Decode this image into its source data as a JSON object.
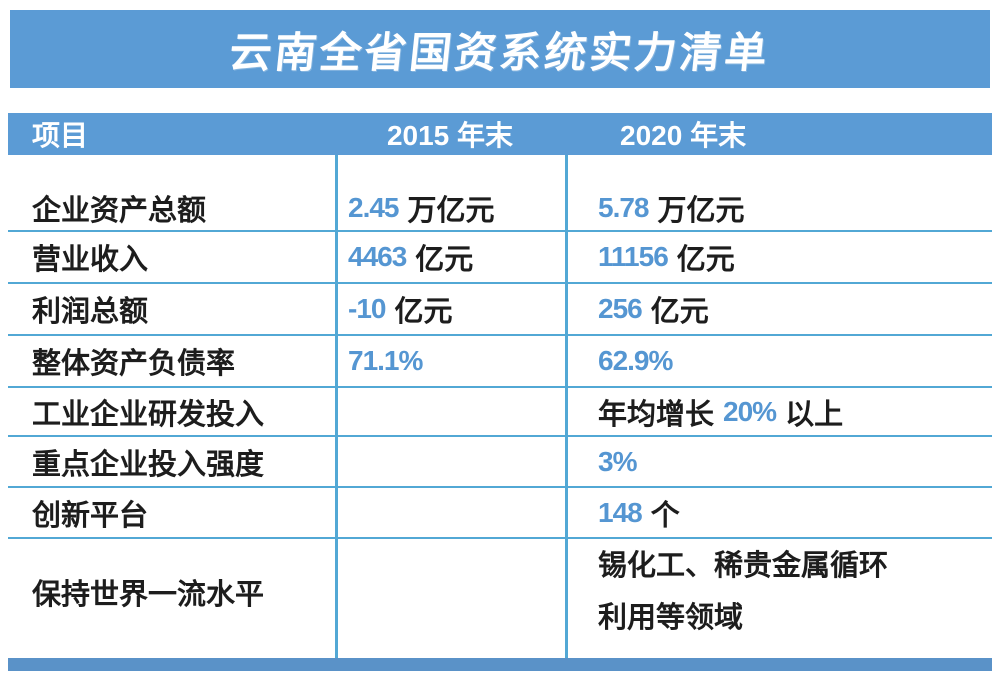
{
  "banner": {
    "title": "云南全省国资系统实力清单"
  },
  "table": {
    "header": {
      "item": "项目",
      "y2015": "2015 年末",
      "y2020": "2020 年末"
    },
    "rows": [
      {
        "label": "企业资产总额",
        "v2015": {
          "num": "2.45",
          "unit": "万亿元"
        },
        "v2020": {
          "num": "5.78",
          "unit": "万亿元"
        }
      },
      {
        "label": "营业收入",
        "v2015": {
          "num": "4463",
          "unit": "亿元"
        },
        "v2020": {
          "num": "11156",
          "unit": "亿元"
        }
      },
      {
        "label": "利润总额",
        "v2015": {
          "num": "-10",
          "unit": "亿元"
        },
        "v2020": {
          "num": "256",
          "unit": "亿元"
        }
      },
      {
        "label": "整体资产负债率",
        "v2015": {
          "num": "71.1%"
        },
        "v2020": {
          "num": "62.9%"
        }
      },
      {
        "label": "工业企业研发投入",
        "v2020": {
          "pre": "年均增长",
          "num": "20%",
          "post": "以上"
        }
      },
      {
        "label": "重点企业投入强度",
        "v2020": {
          "num": "3%"
        }
      },
      {
        "label": "创新平台",
        "v2020": {
          "num": "148",
          "unit": "个"
        }
      },
      {
        "label": "保持世界一流水平",
        "v2020_lines": [
          "锡化工、稀贵金属循环",
          "利用等领域"
        ]
      }
    ]
  },
  "colors": {
    "banner_blue": "#5b9bd5",
    "grid_line_blue": "#52a8d5",
    "number_blue": "#5596d2",
    "text_dark": "#1d1d1d",
    "bottom_bar_blue": "#5a92c8",
    "header_text": "#ffffff"
  },
  "chart_data": {
    "type": "table",
    "title": "云南全省国资系统实力清单",
    "columns": [
      "项目",
      "2015 年末",
      "2020 年末"
    ],
    "rows": [
      [
        "企业资产总额",
        "2.45 万亿元",
        "5.78 万亿元"
      ],
      [
        "营业收入",
        "4463 亿元",
        "11156 亿元"
      ],
      [
        "利润总额",
        "-10 亿元",
        "256 亿元"
      ],
      [
        "整体资产负债率",
        "71.1%",
        "62.9%"
      ],
      [
        "工业企业研发投入",
        "",
        "年均增长 20% 以上"
      ],
      [
        "重点企业投入强度",
        "",
        "3%"
      ],
      [
        "创新平台",
        "",
        "148 个"
      ],
      [
        "保持世界一流水平",
        "",
        "锡化工、稀贵金属循环利用等领域"
      ]
    ]
  }
}
